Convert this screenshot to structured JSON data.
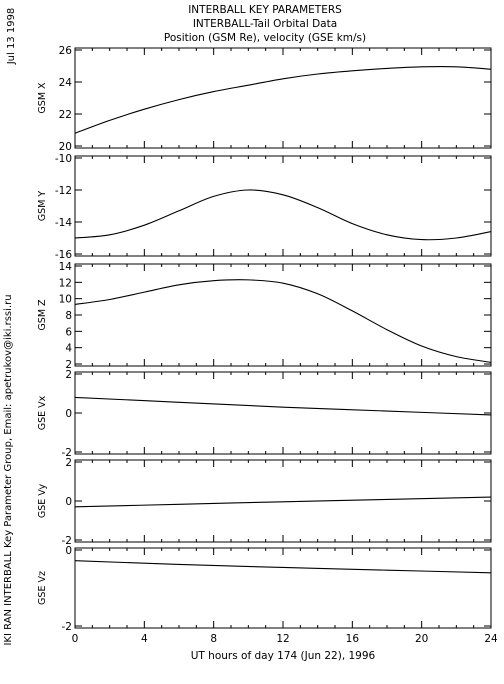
{
  "header": {
    "date": "Jul 13 1998",
    "title": "INTERBALL KEY PARAMETERS",
    "subtitle1": "INTERBALL-Tail Orbital Data",
    "subtitle2": "Position (GSM Re), velocity (GSE km/s)"
  },
  "footer": {
    "credit": "IKI RAN INTERBALL Key Parameter Group, Email: apetrukov@iki.rssi.ru"
  },
  "colors": {
    "line": "#000000",
    "background": "#ffffff"
  },
  "chart_data": [
    {
      "type": "line",
      "ylabel": "GSM X",
      "ylim": [
        20,
        26
      ],
      "yticks": [
        "26",
        "24",
        "22",
        "20"
      ],
      "x": [
        0,
        2,
        4,
        6,
        8,
        10,
        12,
        14,
        16,
        18,
        20,
        22,
        24
      ],
      "values": [
        20.8,
        21.6,
        22.3,
        22.9,
        23.4,
        23.8,
        24.2,
        24.5,
        24.7,
        24.85,
        24.95,
        24.95,
        24.8
      ]
    },
    {
      "type": "line",
      "ylabel": "GSM Y",
      "ylim": [
        -16,
        -10
      ],
      "yticks": [
        "-10",
        "-12",
        "-14",
        "-16"
      ],
      "x": [
        0,
        2,
        4,
        6,
        8,
        10,
        12,
        14,
        16,
        18,
        20,
        22,
        24
      ],
      "values": [
        -15.0,
        -14.8,
        -14.2,
        -13.3,
        -12.4,
        -12.0,
        -12.3,
        -13.1,
        -14.1,
        -14.8,
        -15.1,
        -15.0,
        -14.6
      ]
    },
    {
      "type": "line",
      "ylabel": "GSM Z",
      "ylim": [
        2,
        14
      ],
      "yticks": [
        "14",
        "12",
        "10",
        "8",
        "6",
        "4",
        "2"
      ],
      "x": [
        0,
        2,
        4,
        6,
        8,
        10,
        12,
        14,
        16,
        18,
        20,
        22,
        24
      ],
      "values": [
        9.3,
        9.9,
        10.8,
        11.7,
        12.2,
        12.3,
        11.9,
        10.6,
        8.5,
        6.2,
        4.2,
        2.9,
        2.2
      ]
    },
    {
      "type": "line",
      "ylabel": "GSE Vx",
      "ylim": [
        -2,
        2
      ],
      "yticks": [
        "2",
        "0",
        "-2"
      ],
      "x": [
        0,
        6,
        12,
        18,
        24
      ],
      "values": [
        0.8,
        0.55,
        0.3,
        0.1,
        -0.1
      ]
    },
    {
      "type": "line",
      "ylabel": "GSE Vy",
      "ylim": [
        -2,
        2
      ],
      "yticks": [
        "2",
        "0",
        "-2"
      ],
      "x": [
        0,
        6,
        12,
        18,
        24
      ],
      "values": [
        -0.3,
        -0.17,
        -0.04,
        0.08,
        0.2
      ]
    },
    {
      "type": "line",
      "ylabel": "GSE Vz",
      "ylim": [
        -2,
        0
      ],
      "yticks": [
        "0",
        "-2"
      ],
      "x": [
        0,
        6,
        12,
        18,
        24
      ],
      "values": [
        -0.28,
        -0.38,
        -0.46,
        -0.53,
        -0.6
      ]
    }
  ],
  "xaxis": {
    "xlim": [
      0,
      24
    ],
    "ticks": [
      "0",
      "4",
      "8",
      "12",
      "16",
      "20",
      "24"
    ],
    "label": "UT hours of day 174 (Jun 22), 1996"
  }
}
